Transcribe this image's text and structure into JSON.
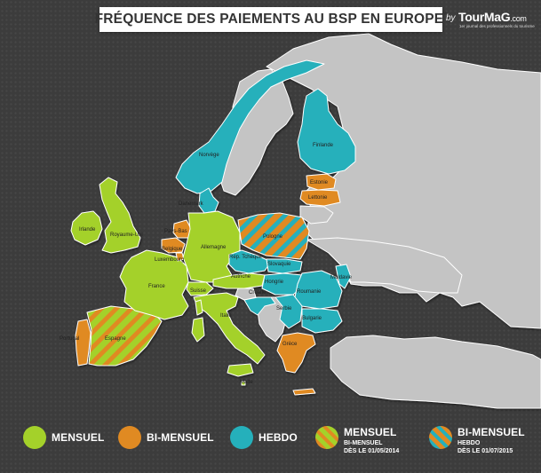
{
  "title": {
    "text": "FRÉQUENCE DES PAIEMENTS AU BSP EN EUROPE",
    "asterisk": "*"
  },
  "brand": {
    "by": "by",
    "logo": "TourMaG",
    "logo_suffix": ".com",
    "tagline": "1er journal des professionnels du tourisme"
  },
  "colors": {
    "mensuel": "#a4d12a",
    "bi_mensuel": "#e08a22",
    "hebdo": "#25b0bb",
    "other_land": "#c4c4c4",
    "background": "#3f3f3f"
  },
  "countries": {
    "norvege": "Norvège",
    "finlande": "Finlande",
    "estonie": "Estonie",
    "lettonie": "Lettonie",
    "danemark": "Danemark",
    "irlande": "Irlande",
    "royaume_uni": "Royaume-Uni",
    "pays_bas": "Pays-Bas",
    "belgique": "Belgique",
    "luxembourg": "Luxembourg",
    "allemagne": "Allemagne",
    "pologne": "Pologne",
    "rep_tcheque": "Rép. Tchèque",
    "slovaquie": "Slovaquie",
    "france": "France",
    "suisse": "Suisse",
    "autriche": "Autriche",
    "hongrie": "Hongrie",
    "roumanie": "Roumanie",
    "moldavie": "Moldavie",
    "croatie": "Croatie",
    "serbie": "Serbie",
    "bulgarie": "Bulgarie",
    "italie": "Italie",
    "portugal": "Portugal",
    "espagne": "Espagne",
    "grece": "Grèce",
    "malte": "Malte"
  },
  "legend": {
    "mensuel": "MENSUEL",
    "bi_mensuel": "BI-MENSUEL",
    "hebdo": "HEBDO",
    "mensuel_to_bi": {
      "label": "MENSUEL",
      "sub1": "BI-MENSUEL",
      "sub2": "DÈS LE 01/05/2014"
    },
    "bi_to_hebdo": {
      "label": "BI-MENSUEL",
      "sub1": "HEBDO",
      "sub2": "DÈS LE 01/07/2015"
    }
  }
}
